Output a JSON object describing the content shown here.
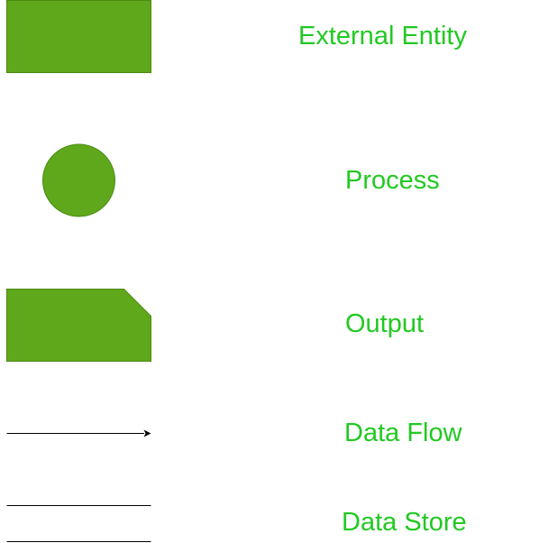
{
  "colors": {
    "shape_fill": "#5fa81b",
    "shape_stroke": "#4a8a12",
    "label_text": "#22c922",
    "line": "#000000"
  },
  "legend": {
    "items": [
      {
        "symbol": "rectangle",
        "label": "External Entity"
      },
      {
        "symbol": "circle",
        "label": "Process"
      },
      {
        "symbol": "clipped-rectangle",
        "label": "Output"
      },
      {
        "symbol": "arrow",
        "label": "Data Flow"
      },
      {
        "symbol": "parallel-lines",
        "label": "Data Store"
      }
    ]
  }
}
